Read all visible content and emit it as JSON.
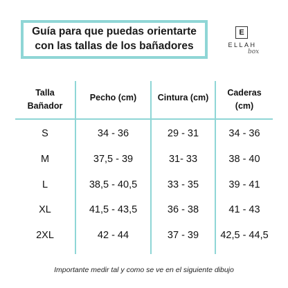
{
  "title": {
    "line1": "Guía para que puedas orientarte",
    "line2": "con las tallas de los bañadores"
  },
  "logo": {
    "letter": "E",
    "name": "ELLAH",
    "script": "box"
  },
  "colors": {
    "accent": "#8fd6d6",
    "text": "#111111"
  },
  "table": {
    "headers": [
      {
        "line1": "Talla",
        "line2": "Bañador"
      },
      {
        "line1": "Pecho (cm)",
        "line2": ""
      },
      {
        "line1": "Cintura (cm)",
        "line2": ""
      },
      {
        "line1": "Caderas",
        "line2": "(cm)"
      }
    ],
    "rows": [
      [
        "S",
        "34 - 36",
        "29 - 31",
        "34 - 36"
      ],
      [
        "M",
        "37,5 - 39",
        "31- 33",
        "38 - 40"
      ],
      [
        "L",
        "38,5 - 40,5",
        "33 - 35",
        "39 - 41"
      ],
      [
        "XL",
        "41,5 - 43,5",
        "36 - 38",
        "41 - 43"
      ],
      [
        "2XL",
        "42 - 44",
        "37 - 39",
        "42,5 - 44,5"
      ]
    ]
  },
  "footnote": "Importante medir tal y como se ve en el siguiente dibujo"
}
